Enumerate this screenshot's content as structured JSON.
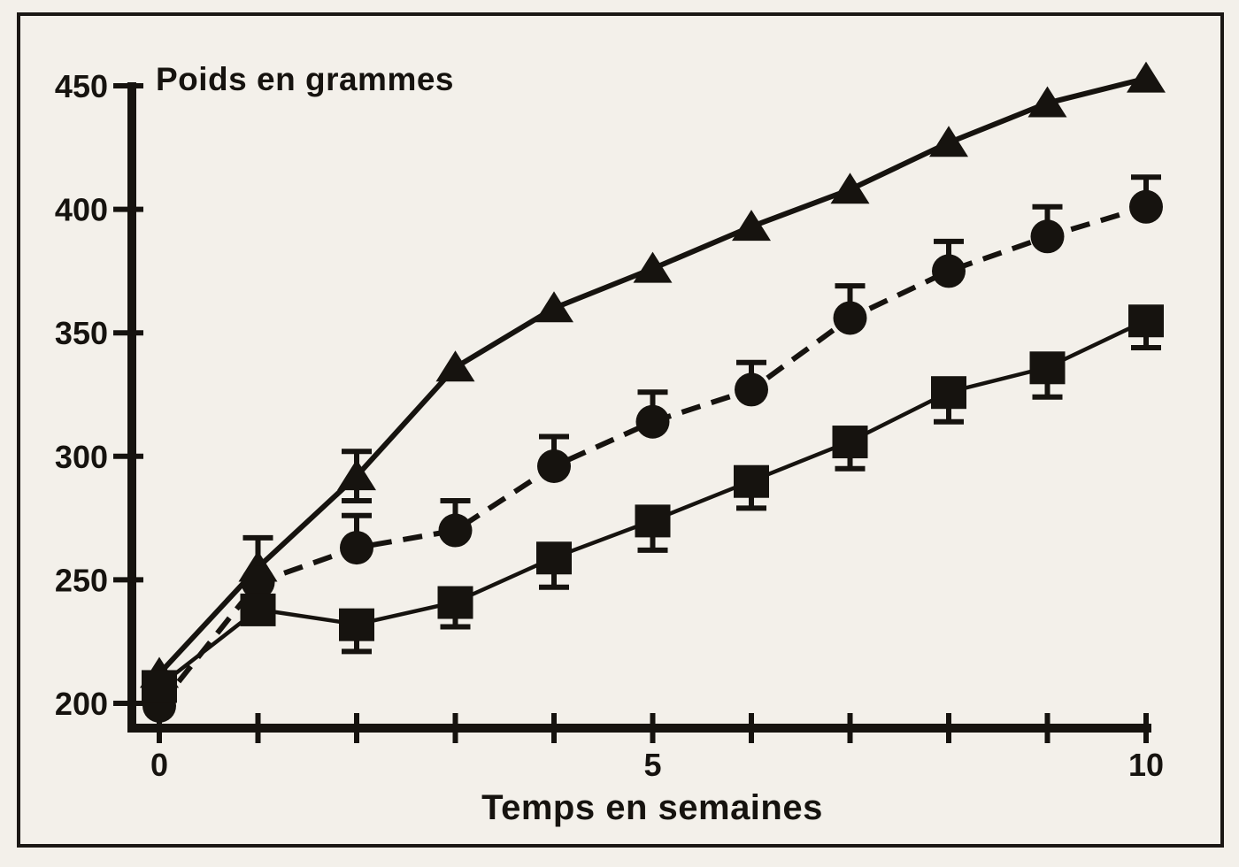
{
  "page": {
    "background": "#f3f0ea",
    "ink": "#16130f",
    "border_color": "#1b1815",
    "description": "scanned-textbook-line-chart"
  },
  "chart_data": {
    "type": "line",
    "title": "Poids en grammes",
    "xlabel": "Temps en semaines",
    "ylabel": "Poids en grammes",
    "x": [
      0,
      1,
      2,
      3,
      4,
      5,
      6,
      7,
      8,
      9,
      10
    ],
    "xlim": [
      0,
      10
    ],
    "ylim": [
      200,
      450
    ],
    "y_ticks": [
      450,
      400,
      350,
      300,
      250,
      200
    ],
    "x_ticks": [
      0,
      1,
      2,
      3,
      4,
      5,
      6,
      7,
      8,
      9,
      10
    ],
    "x_tick_labels_shown": [
      0,
      5,
      10
    ],
    "grid": false,
    "legend": "none",
    "series": [
      {
        "name": "triangle-series",
        "marker": "triangle",
        "line": "solid",
        "values": [
          212,
          255,
          292,
          336,
          360,
          376,
          393,
          408,
          427,
          443,
          453
        ],
        "error_up": [
          0,
          12,
          10,
          0,
          0,
          0,
          0,
          0,
          0,
          0,
          0
        ],
        "error_down": [
          0,
          0,
          10,
          0,
          0,
          0,
          0,
          0,
          0,
          0,
          0
        ]
      },
      {
        "name": "circle-series",
        "marker": "circle",
        "line": "dashed",
        "values": [
          199,
          249,
          263,
          270,
          296,
          314,
          327,
          356,
          375,
          389,
          401
        ],
        "error_up": [
          0,
          0,
          13,
          12,
          12,
          12,
          11,
          13,
          12,
          12,
          12
        ],
        "error_down": [
          0,
          0,
          0,
          0,
          0,
          0,
          0,
          0,
          0,
          0,
          0
        ]
      },
      {
        "name": "square-series",
        "marker": "square",
        "line": "solid",
        "values": [
          207,
          238,
          232,
          241,
          259,
          274,
          290,
          306,
          326,
          336,
          355
        ],
        "error_up": [
          0,
          0,
          0,
          0,
          0,
          0,
          0,
          0,
          0,
          0,
          0
        ],
        "error_down": [
          0,
          0,
          11,
          10,
          12,
          12,
          11,
          11,
          12,
          12,
          11
        ]
      }
    ]
  }
}
